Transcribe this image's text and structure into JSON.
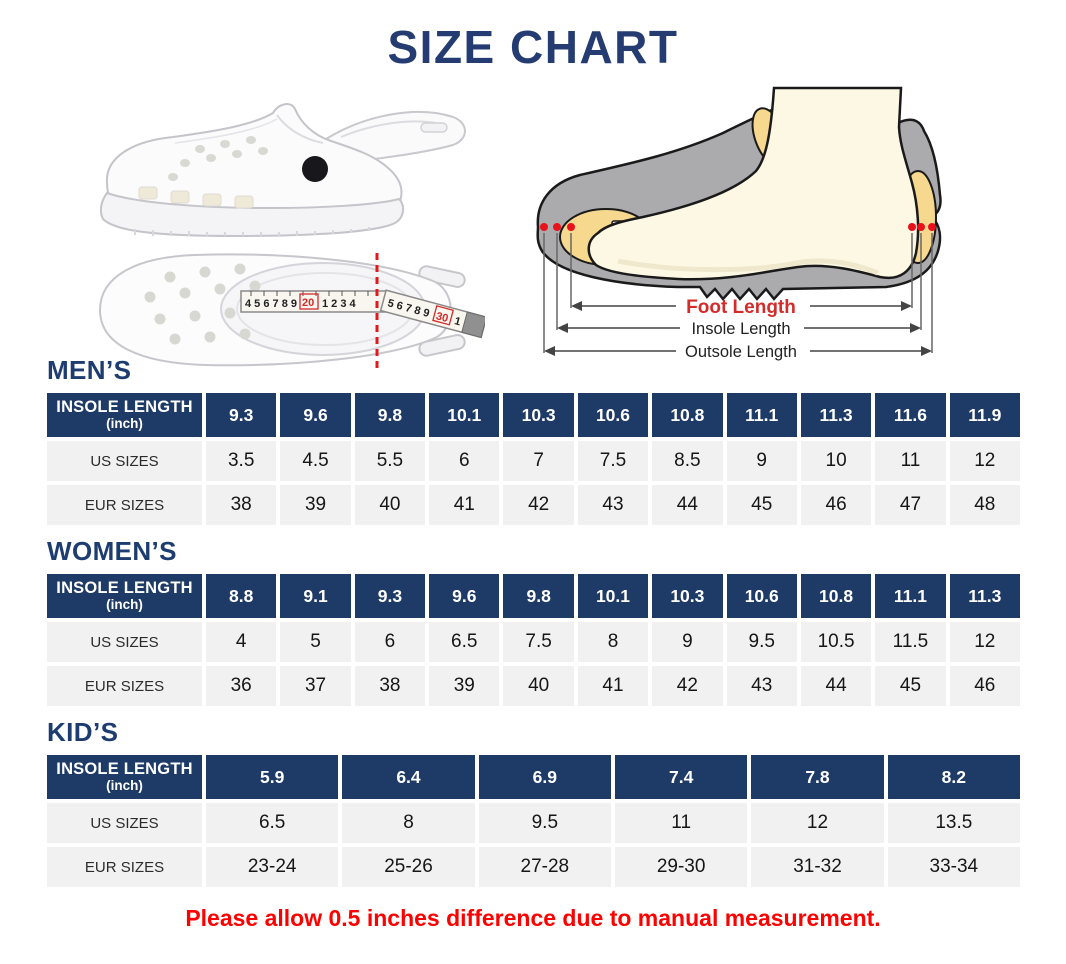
{
  "title": "SIZE CHART",
  "note": "Please allow 0.5 inches difference due to manual measurement.",
  "colors": {
    "navy_header": "#1e3a66",
    "heading_navy": "#1d3c70",
    "title_navy": "#253c72",
    "note_red": "#ff0000",
    "accent_red": "#e8111c",
    "row_gray": "#f1f1f1"
  },
  "diagram": {
    "foot_length_label": "Foot Length",
    "insole_length_label": "Insole Length",
    "outsole_length_label": "Outsole Length"
  },
  "tape": {
    "left_numbers": "4 5 6 7 8 9",
    "mark_20": "20",
    "mid_numbers": "1 2 3 4",
    "angled_numbers": "5 6 7 8 9",
    "mark_30": "30",
    "end_number": "1"
  },
  "tables": [
    {
      "section": "MEN’S",
      "header_line1": "INSOLE LENGTH",
      "header_line2": "(inch)",
      "insole": [
        "9.3",
        "9.6",
        "9.8",
        "10.1",
        "10.3",
        "10.6",
        "10.8",
        "11.1",
        "11.3",
        "11.6",
        "11.9"
      ],
      "rows": [
        {
          "label": "US SIZES",
          "values": [
            "3.5",
            "4.5",
            "5.5",
            "6",
            "7",
            "7.5",
            "8.5",
            "9",
            "10",
            "11",
            "12"
          ]
        },
        {
          "label": "EUR SIZES",
          "values": [
            "38",
            "39",
            "40",
            "41",
            "42",
            "43",
            "44",
            "45",
            "46",
            "47",
            "48"
          ]
        }
      ]
    },
    {
      "section": "WOMEN’S",
      "header_line1": "INSOLE LENGTH",
      "header_line2": "(inch)",
      "insole": [
        "8.8",
        "9.1",
        "9.3",
        "9.6",
        "9.8",
        "10.1",
        "10.3",
        "10.6",
        "10.8",
        "11.1",
        "11.3"
      ],
      "rows": [
        {
          "label": "US SIZES",
          "values": [
            "4",
            "5",
            "6",
            "6.5",
            "7.5",
            "8",
            "9",
            "9.5",
            "10.5",
            "11.5",
            "12"
          ]
        },
        {
          "label": "EUR SIZES",
          "values": [
            "36",
            "37",
            "38",
            "39",
            "40",
            "41",
            "42",
            "43",
            "44",
            "45",
            "46"
          ]
        }
      ]
    },
    {
      "section": "KID’S",
      "header_line1": "INSOLE LENGTH",
      "header_line2": "(inch)",
      "insole": [
        "5.9",
        "6.4",
        "6.9",
        "7.4",
        "7.8",
        "8.2"
      ],
      "rows": [
        {
          "label": "US SIZES",
          "values": [
            "6.5",
            "8",
            "9.5",
            "11",
            "12",
            "13.5"
          ]
        },
        {
          "label": "EUR SIZES",
          "values": [
            "23-24",
            "25-26",
            "27-28",
            "29-30",
            "31-32",
            "33-34"
          ]
        }
      ]
    }
  ]
}
